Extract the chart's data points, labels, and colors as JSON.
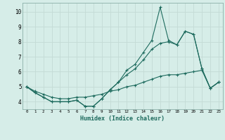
{
  "xlabel": "Humidex (Indice chaleur)",
  "bg_color": "#d6ede8",
  "grid_color": "#c4dbd5",
  "line_color": "#1e6b5e",
  "spine_color": "#8ab0a8",
  "xlim": [
    -0.5,
    23.5
  ],
  "ylim": [
    3.5,
    10.6
  ],
  "xticks": [
    0,
    1,
    2,
    3,
    4,
    5,
    6,
    7,
    8,
    9,
    10,
    11,
    12,
    13,
    14,
    15,
    16,
    17,
    18,
    19,
    20,
    21,
    22,
    23
  ],
  "yticks": [
    4,
    5,
    6,
    7,
    8,
    9,
    10
  ],
  "series1": [
    5.0,
    4.6,
    4.3,
    4.0,
    4.0,
    4.0,
    4.1,
    3.7,
    3.7,
    4.2,
    4.8,
    5.3,
    6.1,
    6.5,
    7.3,
    8.1,
    10.3,
    8.1,
    7.8,
    8.7,
    8.5,
    6.2,
    4.9,
    5.3
  ],
  "series2": [
    5.0,
    4.6,
    4.3,
    4.0,
    4.0,
    4.0,
    4.1,
    3.7,
    3.7,
    4.2,
    4.8,
    5.3,
    5.8,
    6.2,
    6.8,
    7.5,
    7.9,
    8.0,
    7.8,
    8.7,
    8.5,
    6.2,
    4.9,
    5.3
  ],
  "series3": [
    5.0,
    4.7,
    4.5,
    4.3,
    4.2,
    4.2,
    4.3,
    4.3,
    4.4,
    4.5,
    4.7,
    4.8,
    5.0,
    5.1,
    5.3,
    5.5,
    5.7,
    5.8,
    5.8,
    5.9,
    6.0,
    6.1,
    4.9,
    5.3
  ]
}
